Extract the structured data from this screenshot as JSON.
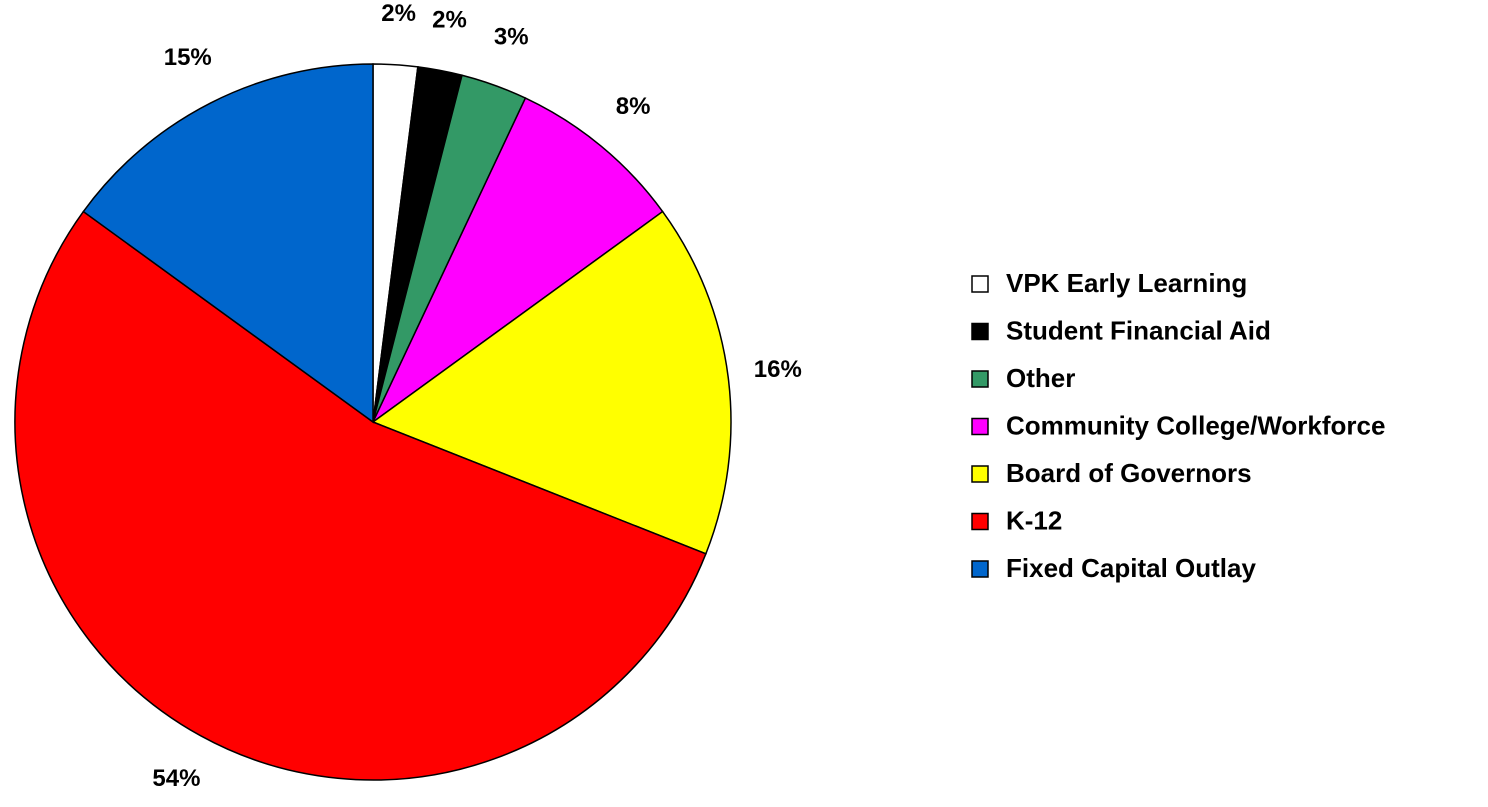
{
  "chart_data": {
    "type": "pie",
    "categories": [
      "VPK Early Learning",
      "Student Financial Aid",
      "Other",
      "Community College/Workforce",
      "Board of Governors",
      "K-12",
      "Fixed Capital Outlay"
    ],
    "values": [
      2,
      2,
      3,
      8,
      16,
      54,
      15
    ],
    "value_labels": [
      "2%",
      "2%",
      "3%",
      "8%",
      "16%",
      "54%",
      "15%"
    ],
    "colors": [
      "#ffffff",
      "#000000",
      "#339966",
      "#ff00ff",
      "#ffff00",
      "#ff0000",
      "#0066cc"
    ],
    "legend": "right"
  }
}
